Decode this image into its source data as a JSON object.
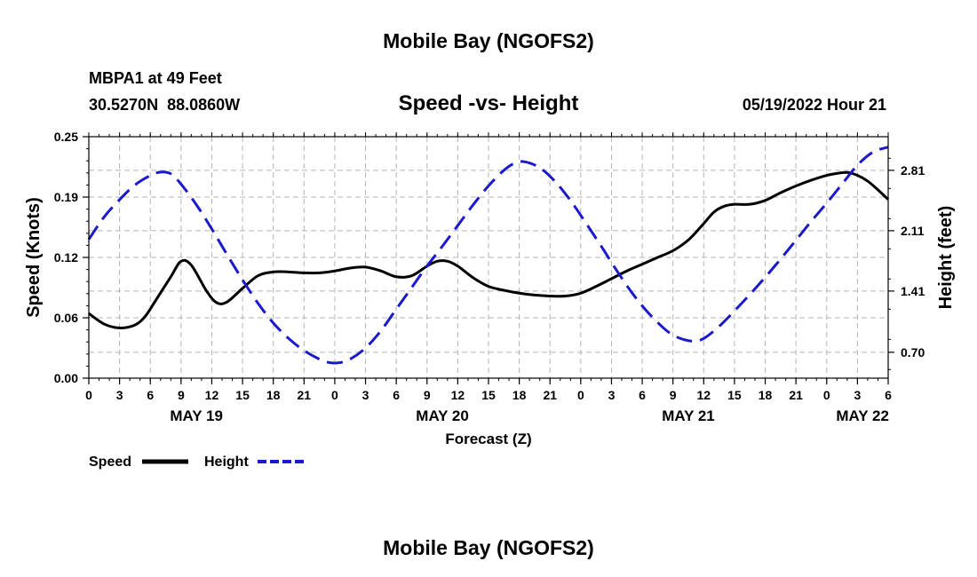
{
  "page": {
    "title": "Mobile Bay (NGOFS2)",
    "footer_title": "Mobile Bay (NGOFS2)"
  },
  "station": {
    "name": "MBPA1 at 49 Feet",
    "coords": "30.5270N  88.0860W",
    "datetime": "05/19/2022 Hour 21"
  },
  "colors": {
    "speed": "#000000",
    "height": "#1a1acc",
    "grid": "#b4b4b4"
  },
  "chart_data": {
    "type": "line",
    "title": "Speed -vs- Height",
    "xlabel": "Forecast (Z)",
    "ylabel": "Speed (Knots)",
    "y2label": "Height (feet)",
    "x_hours": [
      0,
      3,
      6,
      9,
      12,
      15,
      18,
      21,
      24,
      27,
      30,
      33,
      36,
      39,
      42,
      45,
      48,
      51,
      54,
      57,
      60,
      63,
      66,
      69,
      72,
      75,
      78
    ],
    "x_tick_labels": [
      "0",
      "3",
      "6",
      "9",
      "12",
      "15",
      "18",
      "21",
      "0",
      "3",
      "6",
      "9",
      "12",
      "15",
      "18",
      "21",
      "0",
      "3",
      "6",
      "9",
      "12",
      "15",
      "18",
      "21",
      "0",
      "3",
      "6"
    ],
    "date_labels": [
      {
        "hour": 10.5,
        "label": "MAY 19"
      },
      {
        "hour": 34.5,
        "label": "MAY 20"
      },
      {
        "hour": 58.5,
        "label": "MAY 21"
      },
      {
        "hour": 75.5,
        "label": "MAY 22"
      }
    ],
    "ylim": [
      0,
      0.25
    ],
    "y_ticks": [
      "0.00",
      "0.06",
      "0.12",
      "0.19",
      "0.25"
    ],
    "y_tick_values": [
      0.0,
      0.0625,
      0.125,
      0.1875,
      0.25
    ],
    "y2lim": [
      0.4,
      3.2
    ],
    "y2_ticks": [
      "0.70",
      "1.41",
      "2.11",
      "2.81"
    ],
    "y2_tick_values": [
      0.7,
      1.41,
      2.11,
      2.81
    ],
    "grid": true,
    "legend_placement": "bottom-left",
    "series": [
      {
        "name": "Speed",
        "axis": "left",
        "style": "solid",
        "x": [
          0,
          1.5,
          3,
          4.5,
          5.5,
          6.5,
          8,
          9,
          10,
          11.5,
          12.5,
          13.5,
          15,
          16.5,
          18,
          19.5,
          21,
          22.5,
          24,
          25.5,
          27,
          28.5,
          30,
          31.5,
          33,
          34,
          35,
          36,
          37.5,
          39,
          40.5,
          42,
          43.5,
          45,
          46.5,
          48,
          49.5,
          51,
          52.5,
          54,
          55.5,
          57,
          58.5,
          60,
          61,
          62,
          63,
          64.5,
          66,
          67.5,
          69,
          70.5,
          72,
          73,
          74,
          75,
          76,
          77,
          78
        ],
        "y": [
          0.067,
          0.056,
          0.052,
          0.055,
          0.064,
          0.08,
          0.105,
          0.121,
          0.117,
          0.09,
          0.078,
          0.079,
          0.093,
          0.106,
          0.11,
          0.11,
          0.109,
          0.109,
          0.111,
          0.114,
          0.115,
          0.111,
          0.105,
          0.106,
          0.116,
          0.121,
          0.121,
          0.116,
          0.104,
          0.095,
          0.091,
          0.088,
          0.086,
          0.085,
          0.085,
          0.088,
          0.095,
          0.103,
          0.111,
          0.118,
          0.125,
          0.132,
          0.143,
          0.16,
          0.172,
          0.178,
          0.18,
          0.18,
          0.184,
          0.192,
          0.199,
          0.205,
          0.21,
          0.212,
          0.213,
          0.21,
          0.204,
          0.195,
          0.185
        ]
      },
      {
        "name": "Height",
        "axis": "right",
        "style": "dashed",
        "x": [
          0,
          1.5,
          3,
          4.5,
          6,
          7,
          8,
          9,
          10.5,
          12,
          13.5,
          15,
          16.5,
          18,
          19.5,
          21,
          22.5,
          23.5,
          24.5,
          25.5,
          27,
          28.5,
          30,
          31.5,
          33,
          34.5,
          36,
          37.5,
          39,
          40.5,
          41.5,
          42.5,
          44,
          45.5,
          47,
          48.5,
          50,
          51.5,
          53,
          54.5,
          56,
          57,
          58,
          59,
          60,
          61.5,
          63,
          64.5,
          66,
          67.5,
          69,
          70.5,
          72,
          73.5,
          75,
          76.5,
          78
        ],
        "y": [
          2.01,
          2.27,
          2.47,
          2.64,
          2.75,
          2.79,
          2.77,
          2.65,
          2.41,
          2.13,
          1.83,
          1.54,
          1.27,
          1.04,
          0.86,
          0.72,
          0.62,
          0.58,
          0.58,
          0.62,
          0.75,
          0.95,
          1.2,
          1.45,
          1.7,
          1.93,
          2.17,
          2.41,
          2.63,
          2.81,
          2.89,
          2.91,
          2.84,
          2.68,
          2.46,
          2.2,
          1.93,
          1.65,
          1.39,
          1.17,
          0.99,
          0.9,
          0.85,
          0.83,
          0.86,
          1.0,
          1.18,
          1.37,
          1.57,
          1.78,
          2.0,
          2.22,
          2.43,
          2.65,
          2.87,
          3.02,
          3.08
        ]
      }
    ]
  }
}
